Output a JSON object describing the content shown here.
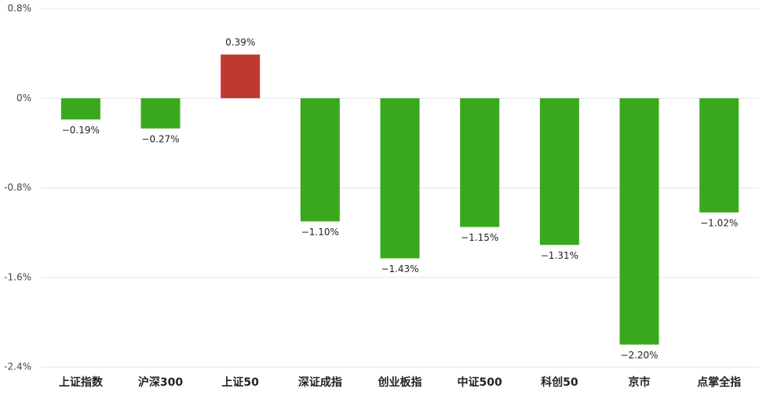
{
  "chart_data": {
    "type": "bar",
    "categories": [
      "上证指数",
      "沪深300",
      "上证50",
      "深证成指",
      "创业板指",
      "中证500",
      "科创50",
      "京市",
      "点掌全指"
    ],
    "values": [
      -0.19,
      -0.27,
      0.39,
      -1.1,
      -1.43,
      -1.15,
      -1.31,
      -2.2,
      -1.02
    ],
    "value_labels": [
      "−0.19%",
      "−0.27%",
      "0.39%",
      "−1.10%",
      "−1.43%",
      "−1.15%",
      "−1.31%",
      "−2.20%",
      "−1.02%"
    ],
    "colors": [
      "#3aa81c",
      "#3aa81c",
      "#c0392f",
      "#3aa81c",
      "#3aa81c",
      "#3aa81c",
      "#3aa81c",
      "#3aa81c",
      "#3aa81c"
    ],
    "ylim": [
      -2.4,
      0.8
    ],
    "yticks": [
      {
        "value": 0.8,
        "label": "0.8%"
      },
      {
        "value": 0,
        "label": "0%"
      },
      {
        "value": -0.8,
        "label": "-0.8%"
      },
      {
        "value": -1.6,
        "label": "-1.6%"
      },
      {
        "value": -2.4,
        "label": "-2.4%"
      }
    ],
    "grid": true
  }
}
